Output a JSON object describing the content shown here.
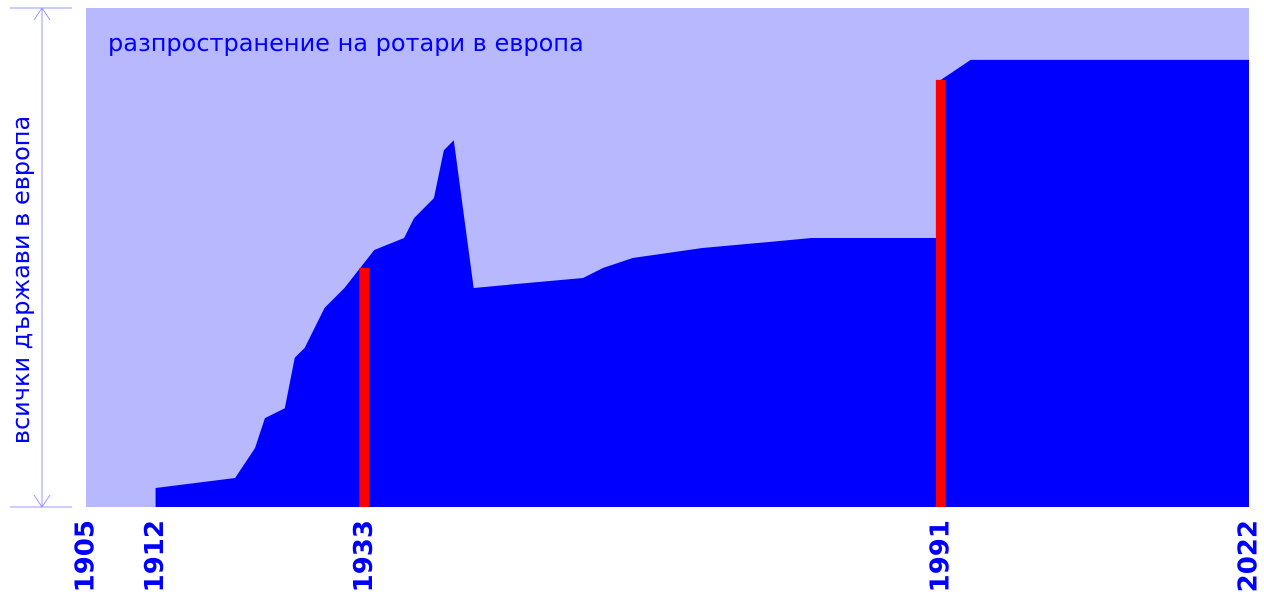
{
  "chart_data": {
    "type": "area",
    "title": "разпространение на ротари в европа",
    "y_label": "всички държави в европа",
    "x": [
      1912,
      1912,
      1920,
      1922,
      1923,
      1925,
      1926,
      1927,
      1929,
      1931,
      1934,
      1937,
      1938,
      1940,
      1941,
      1942,
      1944,
      1955,
      1957,
      1960,
      1967,
      1978,
      1991,
      1991,
      1994,
      2022
    ],
    "values": [
      0,
      3.8,
      5.8,
      11.8,
      17.8,
      19.8,
      29.9,
      31.9,
      39.9,
      43.9,
      51.5,
      53.9,
      57.9,
      61.9,
      71.5,
      73.5,
      43.9,
      45.9,
      47.9,
      49.9,
      51.9,
      53.9,
      53.9,
      85.6,
      89.6,
      89.6
    ],
    "color": "#0000ff",
    "background": "#b8b8ff",
    "markers": [
      {
        "x": 1933,
        "value": 47.9
      },
      {
        "x": 1991,
        "value": 85.6
      }
    ],
    "marker_color": "#ff0000",
    "xlim": [
      1905,
      2022
    ],
    "ylim": [
      0,
      100
    ],
    "xticks": [
      1905,
      1912,
      1933,
      1991,
      2022
    ]
  }
}
